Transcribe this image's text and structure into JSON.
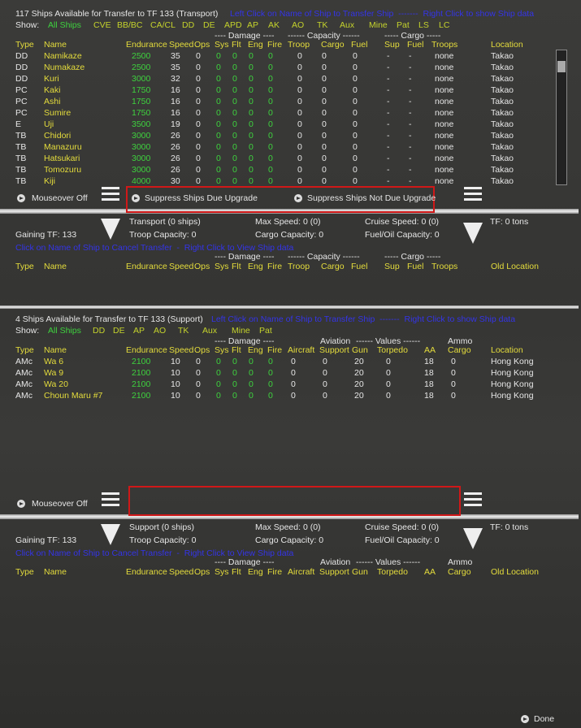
{
  "panels": [
    {
      "title": "117 Ships Available for Transfer to TF 133 (Transport)",
      "hint": "Left Click on Name of Ship to Transfer Ship  -------  Right Click to show Ship data",
      "show_label": "Show:",
      "filters": [
        "All Ships",
        "CVE",
        "BB/BC",
        "CA/CL",
        "DD",
        "DE",
        "APD",
        "AP",
        "AK",
        "AO",
        "TK",
        "Aux",
        "Mine",
        "Pat",
        "LS",
        "LC"
      ],
      "group_headers": [
        "---- Damage ----",
        "------ Capacity ------",
        "----- Cargo -----"
      ],
      "columns": [
        "Type",
        "Name",
        "Endurance",
        "Speed",
        "Ops",
        "Sys",
        "Flt",
        "Eng",
        "Fire",
        "Troop",
        "Cargo",
        "Fuel",
        "Sup",
        "Fuel",
        "Troops",
        "Location"
      ],
      "rows": [
        [
          "DD",
          "Namikaze",
          2500,
          35,
          0,
          0,
          0,
          0,
          0,
          0,
          0,
          0,
          "-",
          "-",
          "none",
          "Takao"
        ],
        [
          "DD",
          "Numakaze",
          2500,
          35,
          0,
          0,
          0,
          0,
          0,
          0,
          0,
          0,
          "-",
          "-",
          "none",
          "Takao"
        ],
        [
          "DD",
          "Kuri",
          3000,
          32,
          0,
          0,
          0,
          0,
          0,
          0,
          0,
          0,
          "-",
          "-",
          "none",
          "Takao"
        ],
        [
          "PC",
          "Kaki",
          1750,
          16,
          0,
          0,
          0,
          0,
          0,
          0,
          0,
          0,
          "-",
          "-",
          "none",
          "Takao"
        ],
        [
          "PC",
          "Ashi",
          1750,
          16,
          0,
          0,
          0,
          0,
          0,
          0,
          0,
          0,
          "-",
          "-",
          "none",
          "Takao"
        ],
        [
          "PC",
          "Sumire",
          1750,
          16,
          0,
          0,
          0,
          0,
          0,
          0,
          0,
          0,
          "-",
          "-",
          "none",
          "Takao"
        ],
        [
          "E",
          "Uji",
          3500,
          19,
          0,
          0,
          0,
          0,
          0,
          0,
          0,
          0,
          "-",
          "-",
          "none",
          "Takao"
        ],
        [
          "TB",
          "Chidori",
          3000,
          26,
          0,
          0,
          0,
          0,
          0,
          0,
          0,
          0,
          "-",
          "-",
          "none",
          "Takao"
        ],
        [
          "TB",
          "Manazuru",
          3000,
          26,
          0,
          0,
          0,
          0,
          0,
          0,
          0,
          0,
          "-",
          "-",
          "none",
          "Takao"
        ],
        [
          "TB",
          "Hatsukari",
          3000,
          26,
          0,
          0,
          0,
          0,
          0,
          0,
          0,
          0,
          "-",
          "-",
          "none",
          "Takao"
        ],
        [
          "TB",
          "Tomozuru",
          3000,
          26,
          0,
          0,
          0,
          0,
          0,
          0,
          0,
          0,
          "-",
          "-",
          "none",
          "Takao"
        ],
        [
          "TB",
          "Kiji",
          4000,
          30,
          0,
          0,
          0,
          0,
          0,
          0,
          0,
          0,
          "-",
          "-",
          "none",
          "Takao"
        ]
      ],
      "mouseover": "Mouseover Off",
      "buttons": [
        "Suppress Ships Due Upgrade",
        "Suppress Ships Not Due Upgrade"
      ],
      "gaining": {
        "ships": "Transport (0 ships)",
        "max_speed": "Max Speed: 0 (0)",
        "cruise_speed": "Cruise Speed: 0 (0)",
        "tf_tons": "TF: 0 tons",
        "gaining_tf": "Gaining TF: 133",
        "troop_capacity": "Troop Capacity: 0",
        "cargo_capacity": "Cargo Capacity: 0",
        "fuel_capacity": "Fuel/Oil Capacity: 0",
        "hint": "Click on Name of Ship to Cancel Transfer  -  Right Click to View Ship data",
        "group_headers": [
          "---- Damage ----",
          "------ Capacity ------",
          "----- Cargo -----"
        ],
        "columns": [
          "Type",
          "Name",
          "Endurance",
          "Speed",
          "Ops",
          "Sys",
          "Flt",
          "Eng",
          "Fire",
          "Troop",
          "Cargo",
          "Fuel",
          "Sup",
          "Fuel",
          "Troops",
          "Old Location"
        ]
      }
    },
    {
      "title": "4 Ships Available for Transfer to TF 133 (Support)",
      "hint": "Left Click on Name of Ship to Transfer Ship  -------  Right Click to show Ship data",
      "show_label": "Show:",
      "filters": [
        "All Ships",
        "DD",
        "DE",
        "AP",
        "AO",
        "TK",
        "Aux",
        "Mine",
        "Pat"
      ],
      "group_headers": [
        "---- Damage ----",
        "Aviation",
        "------ Values ------",
        "Ammo"
      ],
      "columns": [
        "Type",
        "Name",
        "Endurance",
        "Speed",
        "Ops",
        "Sys",
        "Flt",
        "Eng",
        "Fire",
        "Aircraft",
        "Support",
        "Gun",
        "Torpedo",
        "AA",
        "Cargo",
        "Location"
      ],
      "rows": [
        [
          "AMc",
          "Wa 6",
          2100,
          10,
          0,
          0,
          0,
          0,
          0,
          0,
          0,
          20,
          0,
          18,
          0,
          "Hong Kong"
        ],
        [
          "AMc",
          "Wa 9",
          2100,
          10,
          0,
          0,
          0,
          0,
          0,
          0,
          0,
          20,
          0,
          18,
          0,
          "Hong Kong"
        ],
        [
          "AMc",
          "Wa 20",
          2100,
          10,
          0,
          0,
          0,
          0,
          0,
          0,
          0,
          20,
          0,
          18,
          0,
          "Hong Kong"
        ],
        [
          "AMc",
          "Choun Maru #7",
          2100,
          10,
          0,
          0,
          0,
          0,
          0,
          0,
          0,
          20,
          0,
          18,
          0,
          "Hong Kong"
        ]
      ],
      "mouseover": "Mouseover Off",
      "gaining": {
        "ships": "Support (0 ships)",
        "max_speed": "Max Speed: 0 (0)",
        "cruise_speed": "Cruise Speed: 0 (0)",
        "tf_tons": "TF: 0 tons",
        "gaining_tf": "Gaining TF: 133",
        "troop_capacity": "Troop Capacity: 0",
        "cargo_capacity": "Cargo Capacity: 0",
        "fuel_capacity": "Fuel/Oil Capacity: 0",
        "hint": "Click on Name of Ship to Cancel Transfer  -  Right Click to View Ship data",
        "group_headers": [
          "---- Damage ----",
          "Aviation",
          "------ Values ------",
          "Ammo"
        ],
        "columns": [
          "Type",
          "Name",
          "Endurance",
          "Speed",
          "Ops",
          "Sys",
          "Flt",
          "Eng",
          "Fire",
          "Aircraft",
          "Support",
          "Gun",
          "Torpedo",
          "AA",
          "Cargo",
          "Old Location"
        ]
      }
    }
  ],
  "done": "Done"
}
